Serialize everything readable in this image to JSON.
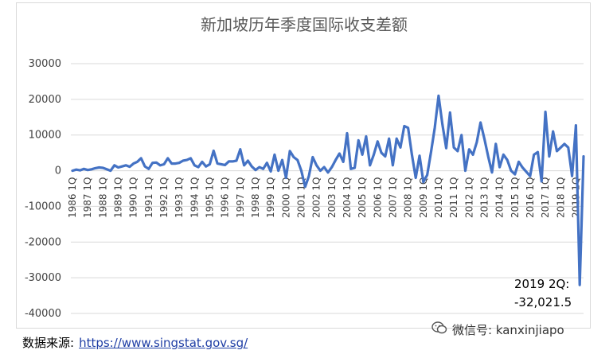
{
  "source": {
    "label": "数据来源:",
    "url": "https://www.singstat.gov.sg/"
  },
  "watermark": {
    "text": "微信号: kanxinjiapo",
    "icon": "wechat-icon"
  },
  "chart_data": {
    "type": "line",
    "title": "新加坡历年季度国际收支差额",
    "xlabel": "",
    "ylabel": "",
    "ylim": [
      -40000,
      30000
    ],
    "yticks": [
      30000,
      20000,
      10000,
      0,
      -10000,
      -20000,
      -30000,
      -40000
    ],
    "grid": true,
    "legend": "none",
    "color": "#4472c4",
    "x_tick_labels": [
      "1986 1Q",
      "1987 1Q",
      "1988 1Q",
      "1989 1Q",
      "1990 1Q",
      "1991 1Q",
      "1992 1Q",
      "1993 1Q",
      "1994 1Q",
      "1995 1Q",
      "1996 1Q",
      "1997 1Q",
      "1998 1Q",
      "1999 1Q",
      "2000 1Q",
      "2001 1Q",
      "2002 1Q",
      "2003 1Q",
      "2004 1Q",
      "2005 1Q",
      "2006 1Q",
      "2007 1Q",
      "2008 1Q",
      "2009 1Q",
      "2010 1Q",
      "2011 1Q",
      "2012 1Q",
      "2013 1Q",
      "2014 1Q",
      "2015 1Q",
      "2016 1Q",
      "2017 1Q",
      "2018 1Q",
      "2019 1Q"
    ],
    "series": [
      {
        "x_start": "1986 1Q",
        "frequency": "quarterly",
        "values": [
          0,
          300,
          100,
          500,
          200,
          400,
          700,
          900,
          800,
          400,
          0,
          1500,
          900,
          1200,
          1500,
          1100,
          2000,
          2500,
          3500,
          1200,
          500,
          2200,
          2300,
          1500,
          1800,
          3500,
          2000,
          2000,
          2200,
          2800,
          3000,
          3500,
          1500,
          1000,
          2500,
          1200,
          1800,
          5600,
          2000,
          1800,
          1600,
          2600,
          2600,
          2800,
          6000,
          1500,
          2800,
          1200,
          200,
          1000,
          500,
          2200,
          -200,
          4500,
          0,
          3000,
          -2000,
          5500,
          3800,
          3000,
          0,
          -4500,
          -1500,
          3800,
          1500,
          0,
          1000,
          -500,
          1000,
          3000,
          4800,
          2500,
          10500,
          500,
          800,
          8500,
          4500,
          9600,
          1500,
          4500,
          8200,
          5000,
          4000,
          9000,
          1500,
          9000,
          6500,
          12500,
          12000,
          4500,
          -2000,
          4200,
          -3200,
          -1200,
          5200,
          12000,
          21000,
          13000,
          6300,
          16300,
          6500,
          5500,
          10000,
          0,
          6000,
          4500,
          8000,
          13500,
          9000,
          4000,
          -500,
          7500,
          1000,
          4500,
          3000,
          0,
          -1000,
          2500,
          900,
          -300,
          -1500,
          4500,
          5200,
          -3000,
          16500,
          4000,
          11000,
          5500,
          6500,
          7500,
          6500,
          -1500,
          12700,
          -32021.5,
          4000
        ]
      }
    ],
    "annotations": [
      {
        "lines": [
          "2019 2Q:",
          "-32,021.5"
        ]
      }
    ]
  }
}
